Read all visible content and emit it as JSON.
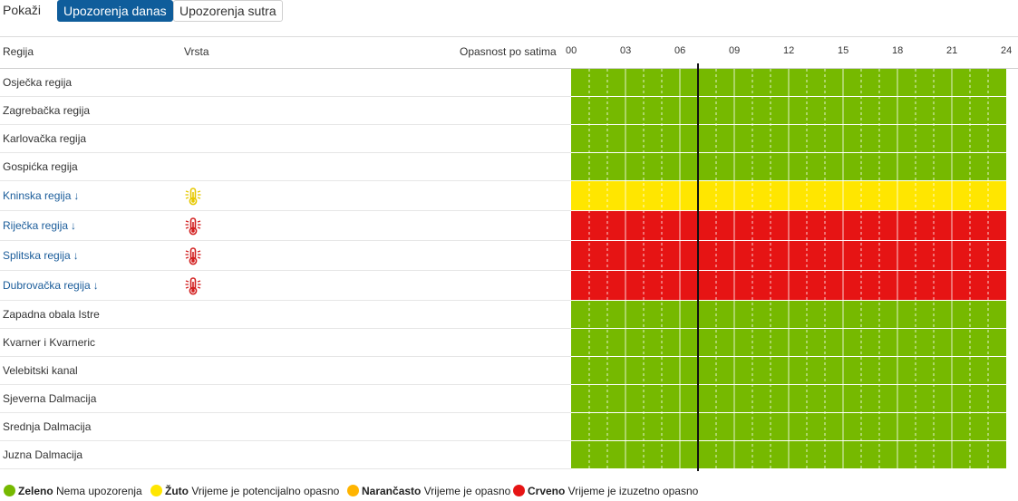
{
  "toolbar": {
    "show_label": "Pokaži",
    "tab_today": "Upozorenja danas",
    "tab_tomorrow": "Upozorenja sutra"
  },
  "header": {
    "region": "Regija",
    "type": "Vrsta",
    "hourly": "Opasnost po satima",
    "hours": [
      "00",
      "03",
      "06",
      "09",
      "12",
      "15",
      "18",
      "21",
      "24"
    ]
  },
  "colors": {
    "green": "#76b900",
    "yellow": "#ffe600",
    "orange": "#ffb400",
    "red": "#e61414"
  },
  "current_hour": 7,
  "regions": [
    {
      "name": "Osječka regija",
      "level": "green",
      "warning": false
    },
    {
      "name": "Zagrebačka regija",
      "level": "green",
      "warning": false
    },
    {
      "name": "Karlovačka regija",
      "level": "green",
      "warning": false
    },
    {
      "name": "Gospićka regija",
      "level": "green",
      "warning": false
    },
    {
      "name": "Kninska regija",
      "level": "yellow",
      "warning": true,
      "icon": "thermometer-heat-icon"
    },
    {
      "name": "Riječka regija",
      "level": "red",
      "warning": true,
      "icon": "thermometer-heat-icon"
    },
    {
      "name": "Splitska regija",
      "level": "red",
      "warning": true,
      "icon": "thermometer-heat-icon"
    },
    {
      "name": "Dubrovačka regija",
      "level": "red",
      "warning": true,
      "icon": "thermometer-heat-icon"
    },
    {
      "name": "Zapadna obala Istre",
      "level": "green",
      "warning": false
    },
    {
      "name": "Kvarner i Kvarneric",
      "level": "green",
      "warning": false
    },
    {
      "name": "Velebitski kanal",
      "level": "green",
      "warning": false
    },
    {
      "name": "Sjeverna Dalmacija",
      "level": "green",
      "warning": false
    },
    {
      "name": "Srednja Dalmacija",
      "level": "green",
      "warning": false
    },
    {
      "name": "Juzna Dalmacija",
      "level": "green",
      "warning": false
    }
  ],
  "arrow_glyph": "↓",
  "legend": [
    {
      "color": "green",
      "title": "Zeleno",
      "text": "Nema upozorenja"
    },
    {
      "color": "yellow",
      "title": "Žuto",
      "text": "Vrijeme je potencijalno opasno"
    },
    {
      "color": "orange",
      "title": "Narančasto",
      "text": "Vrijeme je opasno"
    },
    {
      "color": "red",
      "title": "Crveno",
      "text": "Vrijeme je izuzetno opasno"
    }
  ]
}
